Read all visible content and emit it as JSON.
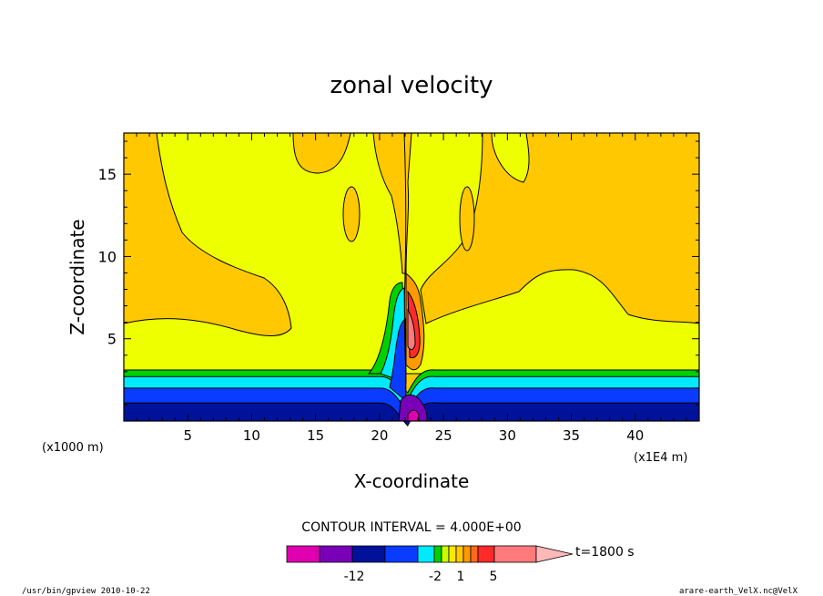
{
  "chart_data": {
    "type": "heatmap",
    "title": "zonal velocity",
    "xlabel": "X-coordinate",
    "ylabel": "Z-coordinate",
    "x_unit": "(x1E4 m)",
    "y_unit": "(x1000 m)",
    "xlim": [
      0,
      45
    ],
    "ylim": [
      0,
      17.5
    ],
    "x_ticks": [
      "5",
      "10",
      "15",
      "20",
      "25",
      "30",
      "35",
      "40"
    ],
    "y_ticks": [
      "5",
      "10",
      "15"
    ],
    "contour_interval_label": "CONTOUR INTERVAL = 4.000E+00",
    "time_label": "t=1800 s",
    "colorbar_labels": [
      "-12",
      "-2",
      "1",
      "5"
    ],
    "colorbar_colors": [
      "#e000b0",
      "#7a00b8",
      "#00129a",
      "#0a3cff",
      "#00eaff",
      "#00d000",
      "#c8ff00",
      "#ffe800",
      "#ffc800",
      "#ff9a00",
      "#ff6a1a",
      "#ff2a2a",
      "#ff7a7a",
      "#ffb8b8"
    ],
    "regions": {
      "layer_bands": [
        {
          "z_top": 3.1,
          "color": "#00d000"
        },
        {
          "z_top": 2.7,
          "color": "#00eaff"
        },
        {
          "z_top": 2.0,
          "color": "#0a3cff"
        },
        {
          "z_top": 1.1,
          "color": "#00129a"
        }
      ],
      "upper_fill_color": "#ffc800",
      "mid_fill_color": "#eeff00",
      "mountain_x": 22.2
    }
  },
  "footer": {
    "left": "/usr/bin/gpview  2010-10-22",
    "right": "arare-earth_VelX.nc@VelX"
  }
}
